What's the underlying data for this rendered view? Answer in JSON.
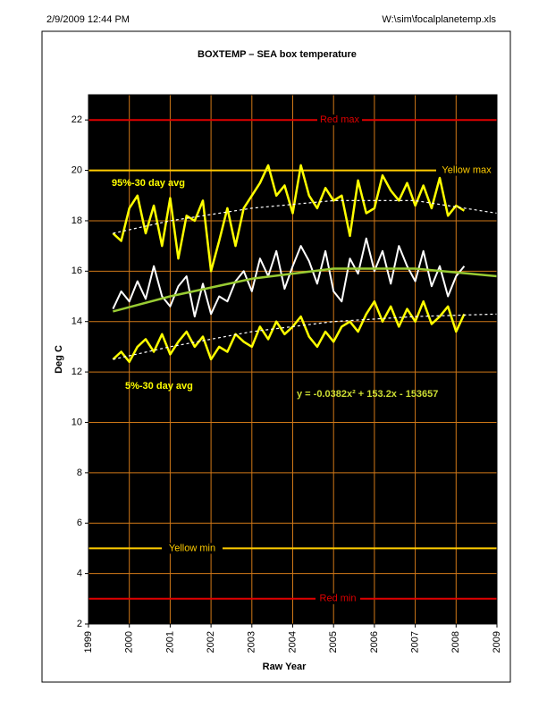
{
  "page": {
    "header_left": "2/9/2009 12:44 PM",
    "header_right": "W:\\sim\\focalplanetemp.xls"
  },
  "chart_data": {
    "type": "line",
    "title": "BOXTEMP  – SEA box temperature",
    "x_label": "Raw Year",
    "y_label": "Deg C",
    "xlim": [
      1999,
      2009
    ],
    "xticks": [
      1999,
      2000,
      2001,
      2002,
      2003,
      2004,
      2005,
      2006,
      2007,
      2008,
      2009
    ],
    "ylim": [
      2,
      23
    ],
    "yticks": [
      2,
      4,
      6,
      8,
      10,
      12,
      14,
      16,
      18,
      20,
      22
    ],
    "grid": true,
    "grid_color": "#d07818",
    "background": "#000000",
    "x": [
      1999.6,
      1999.8,
      2000.0,
      2000.2,
      2000.4,
      2000.6,
      2000.8,
      2001.0,
      2001.2,
      2001.4,
      2001.6,
      2001.8,
      2002.0,
      2002.2,
      2002.4,
      2002.6,
      2002.8,
      2003.0,
      2003.2,
      2003.4,
      2003.6,
      2003.8,
      2004.0,
      2004.2,
      2004.4,
      2004.6,
      2004.8,
      2005.0,
      2005.2,
      2005.4,
      2005.6,
      2005.8,
      2006.0,
      2006.2,
      2006.4,
      2006.6,
      2006.8,
      2007.0,
      2007.2,
      2007.4,
      2007.6,
      2007.8,
      2008.0,
      2008.2
    ],
    "series": [
      {
        "color": "#ffff00",
        "width": 2.5,
        "values": [
          17.5,
          17.2,
          18.5,
          19.0,
          17.5,
          18.6,
          17.0,
          18.9,
          16.5,
          18.2,
          18.0,
          18.8,
          16.0,
          17.2,
          18.5,
          17.0,
          18.5,
          19.0,
          19.5,
          20.2,
          19.0,
          19.4,
          18.3,
          20.2,
          19.0,
          18.5,
          19.3,
          18.8,
          19.0,
          17.4,
          19.6,
          18.3,
          18.5,
          19.8,
          19.2,
          18.8,
          19.5,
          18.6,
          19.4,
          18.5,
          19.7,
          18.2,
          18.6,
          18.4
        ]
      },
      {
        "color": "#ffffff",
        "width": 2,
        "values": [
          14.5,
          15.2,
          14.8,
          15.6,
          14.9,
          16.2,
          15.0,
          14.6,
          15.4,
          15.8,
          14.2,
          15.5,
          14.3,
          15.0,
          14.8,
          15.6,
          16.0,
          15.2,
          16.5,
          15.8,
          16.8,
          15.3,
          16.2,
          17.0,
          16.4,
          15.5,
          16.8,
          15.2,
          14.8,
          16.5,
          15.9,
          17.3,
          16.0,
          16.8,
          15.5,
          17.0,
          16.2,
          15.6,
          16.8,
          15.4,
          16.2,
          15.0,
          15.8,
          16.2
        ]
      },
      {
        "color": "#ffff00",
        "width": 2.5,
        "values": [
          12.5,
          12.8,
          12.4,
          13.0,
          13.3,
          12.8,
          13.5,
          12.7,
          13.2,
          13.6,
          13.0,
          13.4,
          12.5,
          13.0,
          12.8,
          13.5,
          13.2,
          13.0,
          13.8,
          13.3,
          14.0,
          13.5,
          13.8,
          14.2,
          13.4,
          13.0,
          13.6,
          13.2,
          13.8,
          14.0,
          13.6,
          14.3,
          14.8,
          14.0,
          14.6,
          13.8,
          14.5,
          14.0,
          14.8,
          13.9,
          14.2,
          14.6,
          13.6,
          14.3
        ]
      },
      {
        "color": "#99cc33",
        "width": 2.5,
        "x": [
          1999.6,
          2001,
          2003,
          2005,
          2007,
          2009
        ],
        "values": [
          14.4,
          15.0,
          15.7,
          16.1,
          16.1,
          15.8
        ]
      },
      {
        "color": "#ffffff",
        "width": 1.2,
        "dashed": true,
        "x": [
          1999.6,
          2001,
          2003,
          2005,
          2007,
          2009
        ],
        "values": [
          17.5,
          18.0,
          18.5,
          18.8,
          18.8,
          18.3
        ]
      },
      {
        "color": "#ffffff",
        "width": 1.2,
        "dashed": true,
        "x": [
          1999.6,
          2001,
          2003,
          2005,
          2007,
          2009
        ],
        "values": [
          12.5,
          13.0,
          13.6,
          14.0,
          14.2,
          14.3
        ]
      }
    ],
    "reference_lines": [
      {
        "label": "Red max",
        "value": 22,
        "color": "#e00000"
      },
      {
        "label": "Yellow max",
        "value": 20,
        "color": "#ffcc00"
      },
      {
        "label": "Yellow min",
        "value": 5,
        "color": "#ffcc00"
      },
      {
        "label": "Red min",
        "value": 3,
        "color": "#e00000"
      }
    ],
    "annotations": [
      {
        "text": "95%-30 day avg",
        "color": "#ffff00"
      },
      {
        "text": "5%-30 day avg",
        "color": "#ffff00"
      },
      {
        "text": "y = -0.0382x² + 153.2x - 153657",
        "color": "#ccdd33"
      }
    ]
  }
}
